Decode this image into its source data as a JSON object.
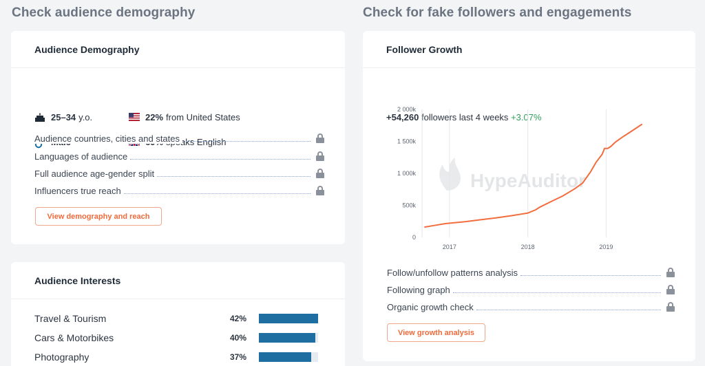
{
  "left": {
    "section_title": "Check audience demography",
    "demography": {
      "title": "Audience Demography",
      "age": {
        "value": "25–34",
        "suffix": "y.o."
      },
      "country": {
        "value": "22%",
        "suffix": "from United States"
      },
      "gender": {
        "value": "Male"
      },
      "language": {
        "value": "69%",
        "suffix": "speaks English"
      },
      "features": [
        "Audience countries, cities and states",
        "Languages of audience",
        "Full audience age-gender split",
        "Influencers true reach"
      ],
      "button": "View demography and reach"
    },
    "interests": {
      "title": "Audience Interests",
      "items": [
        {
          "name": "Travel & Tourism",
          "pct": "42%",
          "value": 0.42
        },
        {
          "name": "Cars & Motorbikes",
          "pct": "40%",
          "value": 0.4
        },
        {
          "name": "Photography",
          "pct": "37%",
          "value": 0.37
        }
      ]
    }
  },
  "right": {
    "section_title": "Check for fake followers and engagements",
    "card_title": "Follower Growth",
    "growth": {
      "count": "+54,260",
      "text": "followers last 4 weeks",
      "rate": "+3.07%"
    },
    "watermark": "HypeAuditor",
    "features": [
      "Follow/unfollow patterns analysis",
      "Following graph",
      "Organic growth check"
    ],
    "button": "View growth analysis"
  },
  "colors": {
    "accent": "#f06a3b",
    "bar": "#1e6ea1",
    "positive": "#2fa05a",
    "line": "#f26d3d"
  },
  "chart_data": {
    "type": "line",
    "title": "",
    "xlabel": "",
    "ylabel": "",
    "y_ticks": [
      "0",
      "500k",
      "1 000k",
      "1 500k",
      "2 000k"
    ],
    "x_ticks": [
      "2017",
      "2018",
      "2019"
    ],
    "ylim": [
      0,
      2000000
    ],
    "xlim": [
      2016.65,
      2019.48
    ],
    "grid": "vertical",
    "series": [
      {
        "x": [
          2016.68,
          2016.8,
          2016.95,
          2017.2,
          2017.4,
          2017.6,
          2017.8,
          2018.0,
          2018.1,
          2018.15,
          2018.3,
          2018.45,
          2018.6,
          2018.7,
          2018.8,
          2018.87,
          2018.95,
          2018.98,
          2019.02,
          2019.06,
          2019.12,
          2019.2,
          2019.3,
          2019.4,
          2019.46
        ],
        "y": [
          160000,
          185000,
          215000,
          245000,
          275000,
          305000,
          340000,
          380000,
          430000,
          470000,
          560000,
          650000,
          760000,
          850000,
          1020000,
          1170000,
          1300000,
          1390000,
          1390000,
          1420000,
          1490000,
          1560000,
          1640000,
          1720000,
          1770000
        ]
      }
    ]
  }
}
